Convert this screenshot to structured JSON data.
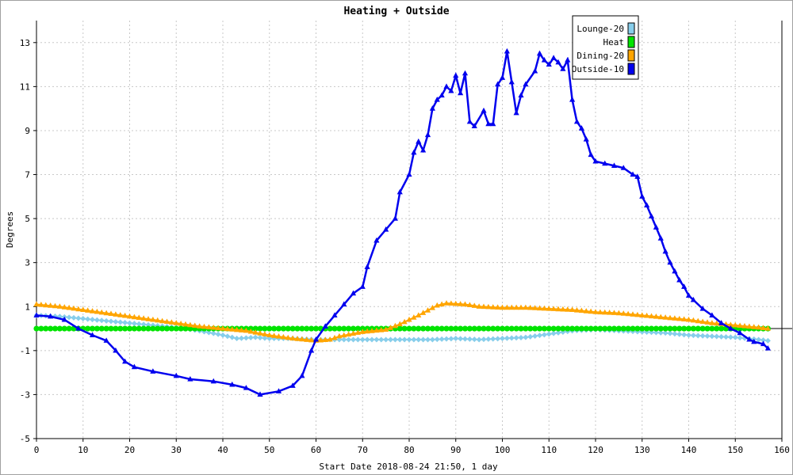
{
  "chart_data": {
    "type": "line",
    "title": "Heating + Outside",
    "xlabel": "Start Date 2018-08-24 21:50, 1 day",
    "ylabel": "Degrees",
    "xlim": [
      0,
      160
    ],
    "ylim": [
      -5,
      14
    ],
    "xticks": [
      "0",
      "10",
      "20",
      "30",
      "40",
      "50",
      "60",
      "70",
      "80",
      "90",
      "100",
      "110",
      "120",
      "130",
      "140",
      "150",
      "160"
    ],
    "yticks": [
      "-5",
      "-3",
      "-1",
      "1",
      "3",
      "5",
      "7",
      "9",
      "11",
      "13"
    ],
    "grid": true,
    "legend_position": "top-right",
    "series": [
      {
        "name": "Lounge-20",
        "color": "#87ceeb",
        "marker": "diamond",
        "points": [
          [
            0,
            0.6
          ],
          [
            5,
            0.55
          ],
          [
            10,
            0.45
          ],
          [
            15,
            0.35
          ],
          [
            20,
            0.25
          ],
          [
            25,
            0.15
          ],
          [
            30,
            0.05
          ],
          [
            35,
            -0.1
          ],
          [
            40,
            -0.3
          ],
          [
            43,
            -0.45
          ],
          [
            47,
            -0.4
          ],
          [
            50,
            -0.45
          ],
          [
            55,
            -0.45
          ],
          [
            60,
            -0.5
          ],
          [
            65,
            -0.5
          ],
          [
            70,
            -0.5
          ],
          [
            75,
            -0.5
          ],
          [
            80,
            -0.5
          ],
          [
            85,
            -0.5
          ],
          [
            90,
            -0.45
          ],
          [
            95,
            -0.5
          ],
          [
            100,
            -0.45
          ],
          [
            105,
            -0.4
          ],
          [
            110,
            -0.25
          ],
          [
            115,
            -0.1
          ],
          [
            120,
            -0.05
          ],
          [
            125,
            -0.1
          ],
          [
            130,
            -0.15
          ],
          [
            135,
            -0.2
          ],
          [
            140,
            -0.3
          ],
          [
            145,
            -0.35
          ],
          [
            150,
            -0.4
          ],
          [
            155,
            -0.5
          ],
          [
            157,
            -0.55
          ]
        ]
      },
      {
        "name": "Heat",
        "color": "#00e400",
        "marker": "circle",
        "points": [
          [
            0,
            0
          ],
          [
            157,
            0
          ]
        ]
      },
      {
        "name": "Dining-20",
        "color": "#ffa500",
        "marker": "triangle",
        "points": [
          [
            0,
            1.1
          ],
          [
            5,
            1.0
          ],
          [
            10,
            0.85
          ],
          [
            15,
            0.7
          ],
          [
            20,
            0.55
          ],
          [
            25,
            0.4
          ],
          [
            30,
            0.25
          ],
          [
            35,
            0.1
          ],
          [
            40,
            0.0
          ],
          [
            45,
            -0.1
          ],
          [
            50,
            -0.3
          ],
          [
            55,
            -0.45
          ],
          [
            60,
            -0.55
          ],
          [
            63,
            -0.5
          ],
          [
            65,
            -0.35
          ],
          [
            70,
            -0.15
          ],
          [
            75,
            -0.05
          ],
          [
            78,
            0.2
          ],
          [
            82,
            0.6
          ],
          [
            86,
            1.05
          ],
          [
            88,
            1.15
          ],
          [
            92,
            1.1
          ],
          [
            95,
            1.0
          ],
          [
            100,
            0.95
          ],
          [
            105,
            0.95
          ],
          [
            110,
            0.9
          ],
          [
            115,
            0.85
          ],
          [
            120,
            0.75
          ],
          [
            125,
            0.7
          ],
          [
            130,
            0.6
          ],
          [
            135,
            0.5
          ],
          [
            140,
            0.4
          ],
          [
            145,
            0.25
          ],
          [
            150,
            0.15
          ],
          [
            155,
            0.05
          ],
          [
            157,
            0.0
          ]
        ]
      },
      {
        "name": "Outside-10",
        "color": "#0000ee",
        "marker": "triangle",
        "points": [
          [
            0,
            0.6
          ],
          [
            3,
            0.55
          ],
          [
            6,
            0.4
          ],
          [
            9,
            0.0
          ],
          [
            12,
            -0.3
          ],
          [
            15,
            -0.55
          ],
          [
            17,
            -1.0
          ],
          [
            19,
            -1.5
          ],
          [
            21,
            -1.75
          ],
          [
            25,
            -1.95
          ],
          [
            30,
            -2.15
          ],
          [
            33,
            -2.3
          ],
          [
            38,
            -2.4
          ],
          [
            42,
            -2.55
          ],
          [
            45,
            -2.7
          ],
          [
            48,
            -3.0
          ],
          [
            52,
            -2.85
          ],
          [
            55,
            -2.6
          ],
          [
            57,
            -2.15
          ],
          [
            59,
            -1.0
          ],
          [
            60,
            -0.5
          ],
          [
            62,
            0.1
          ],
          [
            64,
            0.6
          ],
          [
            66,
            1.1
          ],
          [
            68,
            1.6
          ],
          [
            70,
            1.9
          ],
          [
            71,
            2.8
          ],
          [
            73,
            4.0
          ],
          [
            75,
            4.5
          ],
          [
            77,
            5.0
          ],
          [
            78,
            6.2
          ],
          [
            80,
            7.0
          ],
          [
            81,
            8.0
          ],
          [
            82,
            8.5
          ],
          [
            83,
            8.1
          ],
          [
            84,
            8.8
          ],
          [
            85,
            10.0
          ],
          [
            86,
            10.4
          ],
          [
            87,
            10.6
          ],
          [
            88,
            11.0
          ],
          [
            89,
            10.8
          ],
          [
            90,
            11.5
          ],
          [
            91,
            10.7
          ],
          [
            92,
            11.6
          ],
          [
            93,
            9.4
          ],
          [
            94,
            9.2
          ],
          [
            96,
            9.9
          ],
          [
            97,
            9.3
          ],
          [
            98,
            9.3
          ],
          [
            99,
            11.1
          ],
          [
            100,
            11.4
          ],
          [
            101,
            12.6
          ],
          [
            102,
            11.2
          ],
          [
            103,
            9.8
          ],
          [
            104,
            10.6
          ],
          [
            105,
            11.1
          ],
          [
            107,
            11.7
          ],
          [
            108,
            12.5
          ],
          [
            109,
            12.2
          ],
          [
            110,
            12.0
          ],
          [
            111,
            12.3
          ],
          [
            112,
            12.1
          ],
          [
            113,
            11.8
          ],
          [
            114,
            12.2
          ],
          [
            115,
            10.4
          ],
          [
            116,
            9.4
          ],
          [
            117,
            9.1
          ],
          [
            118,
            8.6
          ],
          [
            119,
            7.9
          ],
          [
            120,
            7.6
          ],
          [
            122,
            7.5
          ],
          [
            124,
            7.4
          ],
          [
            126,
            7.3
          ],
          [
            128,
            7.0
          ],
          [
            129,
            6.9
          ],
          [
            130,
            6.0
          ],
          [
            131,
            5.6
          ],
          [
            132,
            5.1
          ],
          [
            133,
            4.6
          ],
          [
            134,
            4.1
          ],
          [
            135,
            3.5
          ],
          [
            136,
            3.0
          ],
          [
            137,
            2.6
          ],
          [
            138,
            2.2
          ],
          [
            139,
            1.9
          ],
          [
            140,
            1.5
          ],
          [
            141,
            1.3
          ],
          [
            143,
            0.9
          ],
          [
            145,
            0.6
          ],
          [
            147,
            0.25
          ],
          [
            149,
            0.0
          ],
          [
            151,
            -0.2
          ],
          [
            153,
            -0.5
          ],
          [
            154,
            -0.6
          ],
          [
            156,
            -0.7
          ],
          [
            157,
            -0.9
          ]
        ]
      }
    ]
  }
}
